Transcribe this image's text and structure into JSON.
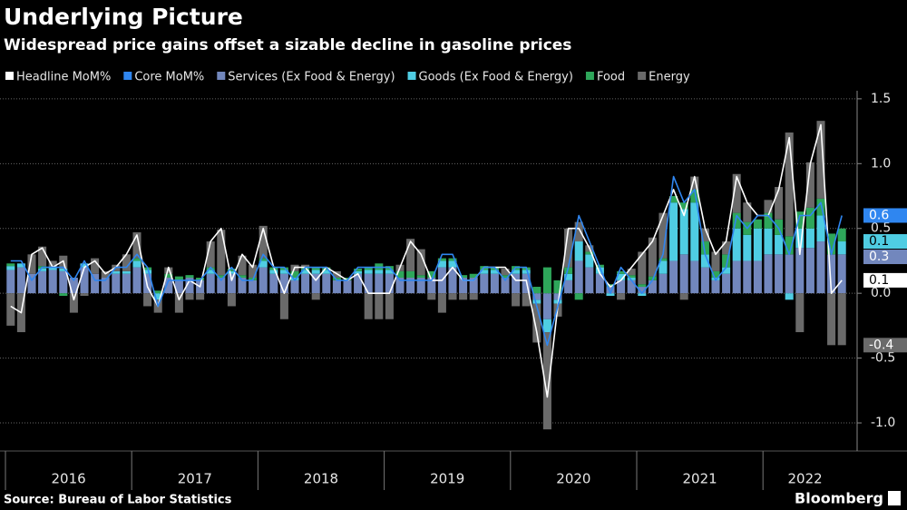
{
  "chart_data": {
    "type": "bar",
    "stacked": true,
    "title": "Underlying Picture",
    "subtitle": "Widespread price gains offset a sizable decline in gasoline prices",
    "source": "Source: Bureau of Labor Statistics",
    "brand": "Bloomberg",
    "categories": [
      "2016",
      null,
      null,
      null,
      null,
      null,
      null,
      null,
      null,
      null,
      null,
      null,
      "2017",
      null,
      null,
      null,
      null,
      null,
      null,
      null,
      null,
      null,
      null,
      null,
      "2018",
      null,
      null,
      null,
      null,
      null,
      null,
      null,
      null,
      null,
      null,
      null,
      "2019",
      null,
      null,
      null,
      null,
      null,
      null,
      null,
      null,
      null,
      null,
      null,
      "2020",
      null,
      null,
      null,
      null,
      null,
      null,
      null,
      null,
      null,
      null,
      null,
      "2021",
      null,
      null,
      null,
      null,
      null,
      null,
      null,
      null,
      null,
      null,
      null,
      "2022",
      null,
      null,
      null,
      null,
      null,
      null,
      null
    ],
    "ylim": [
      -1.2,
      1.6
    ],
    "yticks": [
      1.5,
      {
        "value": 1,
        "label": "1.0"
      },
      0.5,
      {
        "value": 0,
        "label": "0.0"
      },
      -0.5,
      {
        "value": -1,
        "label": "-1.0"
      }
    ],
    "grid": true,
    "legend": "top-left",
    "series": [
      {
        "name": "Headline MoM%",
        "type": "line",
        "color": "#ffffff",
        "values": [
          -0.1,
          -0.15,
          0.3,
          0.35,
          0.2,
          0.25,
          -0.05,
          0.2,
          0.25,
          0.15,
          0.2,
          0.3,
          0.45,
          0.05,
          -0.1,
          0.2,
          -0.05,
          0.1,
          0.05,
          0.4,
          0.5,
          0.1,
          0.3,
          0.2,
          0.5,
          0.2,
          0.0,
          0.2,
          0.2,
          0.1,
          0.2,
          0.15,
          0.1,
          0.15,
          0.0,
          0.0,
          0.0,
          0.2,
          0.4,
          0.3,
          0.1,
          0.1,
          0.2,
          0.1,
          0.1,
          0.2,
          0.2,
          0.2,
          0.1,
          0.1,
          -0.3,
          -0.8,
          -0.1,
          0.5,
          0.5,
          0.35,
          0.15,
          0.05,
          0.1,
          0.2,
          0.3,
          0.4,
          0.6,
          0.8,
          0.6,
          0.9,
          0.5,
          0.3,
          0.4,
          0.9,
          0.7,
          0.6,
          0.6,
          0.8,
          1.2,
          0.3,
          1.0,
          1.3,
          0.0,
          0.1
        ]
      },
      {
        "name": "Core MoM%",
        "type": "line",
        "color": "#2f86f0",
        "values": [
          0.25,
          0.25,
          0.1,
          0.2,
          0.2,
          0.2,
          0.1,
          0.25,
          0.1,
          0.1,
          0.2,
          0.2,
          0.3,
          0.2,
          -0.1,
          0.1,
          0.1,
          0.1,
          0.1,
          0.2,
          0.1,
          0.2,
          0.1,
          0.1,
          0.3,
          0.2,
          0.2,
          0.1,
          0.2,
          0.2,
          0.2,
          0.1,
          0.1,
          0.2,
          0.2,
          0.2,
          0.2,
          0.1,
          0.1,
          0.1,
          0.1,
          0.3,
          0.3,
          0.1,
          0.1,
          0.2,
          0.2,
          0.1,
          0.2,
          0.2,
          -0.1,
          -0.4,
          -0.1,
          0.2,
          0.6,
          0.4,
          0.2,
          0.0,
          0.2,
          0.1,
          0.0,
          0.1,
          0.3,
          0.9,
          0.7,
          0.8,
          0.3,
          0.1,
          0.2,
          0.6,
          0.5,
          0.6,
          0.6,
          0.5,
          0.3,
          0.6,
          0.6,
          0.7,
          0.3,
          0.6
        ]
      },
      {
        "name": "Services (Ex Food & Energy)",
        "type": "bar",
        "color": "#7287bd",
        "values": [
          0.18,
          0.2,
          0.15,
          0.17,
          0.18,
          0.17,
          0.12,
          0.2,
          0.15,
          0.12,
          0.15,
          0.15,
          0.2,
          0.15,
          0.0,
          0.12,
          0.1,
          0.12,
          0.1,
          0.15,
          0.12,
          0.15,
          0.12,
          0.1,
          0.2,
          0.15,
          0.15,
          0.1,
          0.15,
          0.15,
          0.15,
          0.1,
          0.1,
          0.15,
          0.15,
          0.15,
          0.15,
          0.12,
          0.12,
          0.12,
          0.12,
          0.2,
          0.2,
          0.12,
          0.12,
          0.15,
          0.15,
          0.12,
          0.15,
          0.15,
          -0.05,
          -0.2,
          -0.05,
          0.1,
          0.25,
          0.2,
          0.15,
          0.05,
          0.1,
          0.1,
          0.05,
          0.1,
          0.15,
          0.25,
          0.3,
          0.25,
          0.2,
          0.1,
          0.15,
          0.25,
          0.25,
          0.25,
          0.3,
          0.3,
          0.3,
          0.35,
          0.35,
          0.4,
          0.3,
          0.3
        ]
      },
      {
        "name": "Goods (Ex Food & Energy)",
        "type": "bar",
        "color": "#4fcde3",
        "values": [
          0.03,
          0.03,
          0.0,
          0.02,
          0.02,
          0.02,
          0.0,
          0.03,
          0.0,
          0.0,
          0.02,
          0.02,
          0.05,
          0.03,
          -0.05,
          0.0,
          0.0,
          0.0,
          0.0,
          0.03,
          0.0,
          0.02,
          0.0,
          0.0,
          0.05,
          0.03,
          0.03,
          0.02,
          0.03,
          0.03,
          0.03,
          0.0,
          0.0,
          0.02,
          0.03,
          0.03,
          0.03,
          0.0,
          0.0,
          0.0,
          0.0,
          0.05,
          0.05,
          0.0,
          0.0,
          0.03,
          0.03,
          0.0,
          0.03,
          0.03,
          -0.03,
          -0.1,
          -0.03,
          0.05,
          0.15,
          0.1,
          0.05,
          -0.02,
          0.05,
          0.02,
          -0.02,
          0.0,
          0.1,
          0.45,
          0.35,
          0.45,
          0.1,
          0.02,
          0.05,
          0.25,
          0.2,
          0.25,
          0.2,
          0.15,
          -0.05,
          0.15,
          0.15,
          0.2,
          0.0,
          0.1
        ]
      },
      {
        "name": "Food",
        "type": "bar",
        "color": "#2ea65a",
        "values": [
          0.02,
          0.0,
          0.0,
          0.02,
          0.0,
          -0.02,
          0.0,
          0.0,
          0.0,
          0.0,
          0.0,
          0.0,
          0.02,
          0.02,
          0.02,
          0.03,
          0.03,
          0.02,
          0.02,
          0.02,
          0.02,
          0.02,
          0.02,
          0.02,
          0.02,
          0.02,
          0.02,
          0.05,
          0.02,
          0.02,
          0.02,
          0.02,
          0.02,
          0.02,
          0.02,
          0.05,
          0.03,
          0.05,
          0.05,
          0.02,
          0.05,
          0.02,
          0.02,
          0.02,
          0.03,
          0.03,
          0.02,
          0.02,
          0.03,
          0.02,
          0.05,
          0.2,
          0.1,
          0.05,
          -0.05,
          0.02,
          0.02,
          0.02,
          0.02,
          0.02,
          0.02,
          0.03,
          0.02,
          0.05,
          0.05,
          0.1,
          0.1,
          0.05,
          0.1,
          0.12,
          0.1,
          0.07,
          0.12,
          0.12,
          0.14,
          0.13,
          0.16,
          0.13,
          0.16,
          0.1
        ]
      },
      {
        "name": "Energy",
        "type": "bar",
        "color": "#6a6a6a",
        "values": [
          -0.25,
          -0.3,
          0.15,
          0.15,
          0.05,
          0.1,
          -0.15,
          -0.02,
          0.12,
          0.05,
          0.05,
          0.13,
          0.2,
          -0.1,
          -0.1,
          0.05,
          -0.15,
          -0.05,
          -0.05,
          0.2,
          0.35,
          -0.1,
          0.15,
          0.1,
          0.25,
          0.0,
          -0.2,
          0.05,
          0.02,
          -0.05,
          0.0,
          0.05,
          0.0,
          0.0,
          -0.2,
          -0.2,
          -0.2,
          0.05,
          0.25,
          0.2,
          -0.05,
          -0.15,
          -0.05,
          -0.05,
          -0.05,
          0.0,
          0.0,
          0.05,
          -0.1,
          -0.1,
          -0.3,
          -0.75,
          -0.1,
          0.3,
          0.15,
          0.05,
          0.0,
          0.0,
          -0.05,
          0.05,
          0.25,
          0.3,
          0.35,
          0.0,
          -0.05,
          0.1,
          0.1,
          0.15,
          0.1,
          0.3,
          0.15,
          0.0,
          0.1,
          0.25,
          0.8,
          -0.3,
          0.35,
          0.6,
          -0.4,
          -0.4
        ]
      }
    ]
  }
}
